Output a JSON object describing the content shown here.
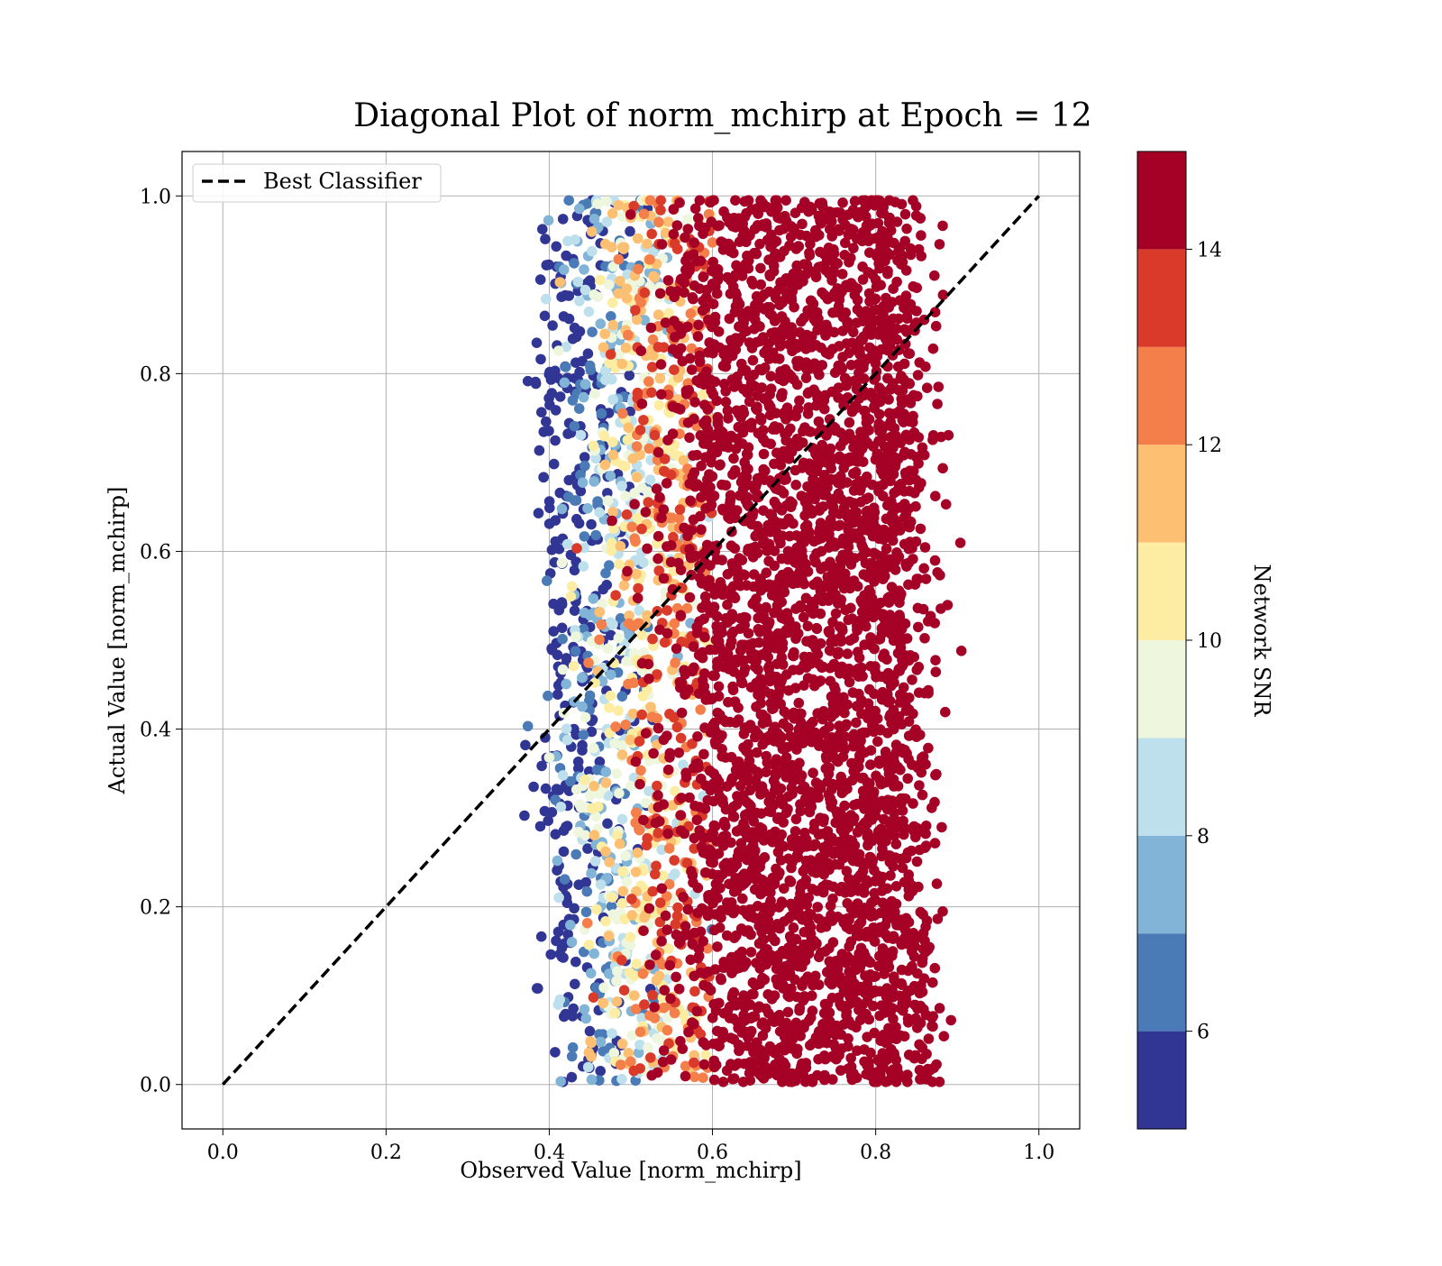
{
  "chart_data": {
    "type": "scatter",
    "title": "Diagonal Plot of norm_mchirp at Epoch = 12",
    "xlabel": "Observed Value [norm_mchirp]",
    "ylabel": "Actual Value [norm_mchirp]",
    "xlim": [
      -0.05,
      1.05
    ],
    "ylim": [
      -0.05,
      1.05
    ],
    "xticks": [
      "0.0",
      "0.2",
      "0.4",
      "0.6",
      "0.8",
      "1.0"
    ],
    "yticks": [
      "0.0",
      "0.2",
      "0.4",
      "0.6",
      "0.8",
      "1.0"
    ],
    "grid": true,
    "legend": {
      "placement": "upper-left",
      "entries": [
        {
          "label": "Best Classifier",
          "style": "dashed",
          "color": "#000000"
        }
      ]
    },
    "reference_line": {
      "name": "Best Classifier",
      "x": [
        0.0,
        1.0
      ],
      "y": [
        0.0,
        1.0
      ],
      "style": "dashed"
    },
    "colorbar": {
      "label": "Network SNR",
      "range": [
        5,
        15
      ],
      "ticks": [
        "6",
        "8",
        "10",
        "12",
        "14"
      ],
      "tick_values": [
        6,
        8,
        10,
        12,
        14
      ],
      "bins": [
        {
          "from": 5,
          "to": 6,
          "color": "#313695"
        },
        {
          "from": 6,
          "to": 7,
          "color": "#4A7BB7"
        },
        {
          "from": 7,
          "to": 8,
          "color": "#81B4D6"
        },
        {
          "from": 8,
          "to": 9,
          "color": "#BEE0EC"
        },
        {
          "from": 9,
          "to": 10,
          "color": "#EEF6DD"
        },
        {
          "from": 10,
          "to": 11,
          "color": "#FDEDA2"
        },
        {
          "from": 11,
          "to": 12,
          "color": "#FDBF71"
        },
        {
          "from": 12,
          "to": 13,
          "color": "#F57F4B"
        },
        {
          "from": 13,
          "to": 14,
          "color": "#DA3A2A"
        },
        {
          "from": 14,
          "to": 15,
          "color": "#A50026"
        }
      ]
    },
    "point_cloud": {
      "description_of_distribution": null,
      "x_range_observed": [
        0.39,
        0.885
      ],
      "y_range_actual": [
        0.0,
        1.0
      ],
      "snr_gradient_x": [
        0.42,
        0.58
      ]
    }
  }
}
